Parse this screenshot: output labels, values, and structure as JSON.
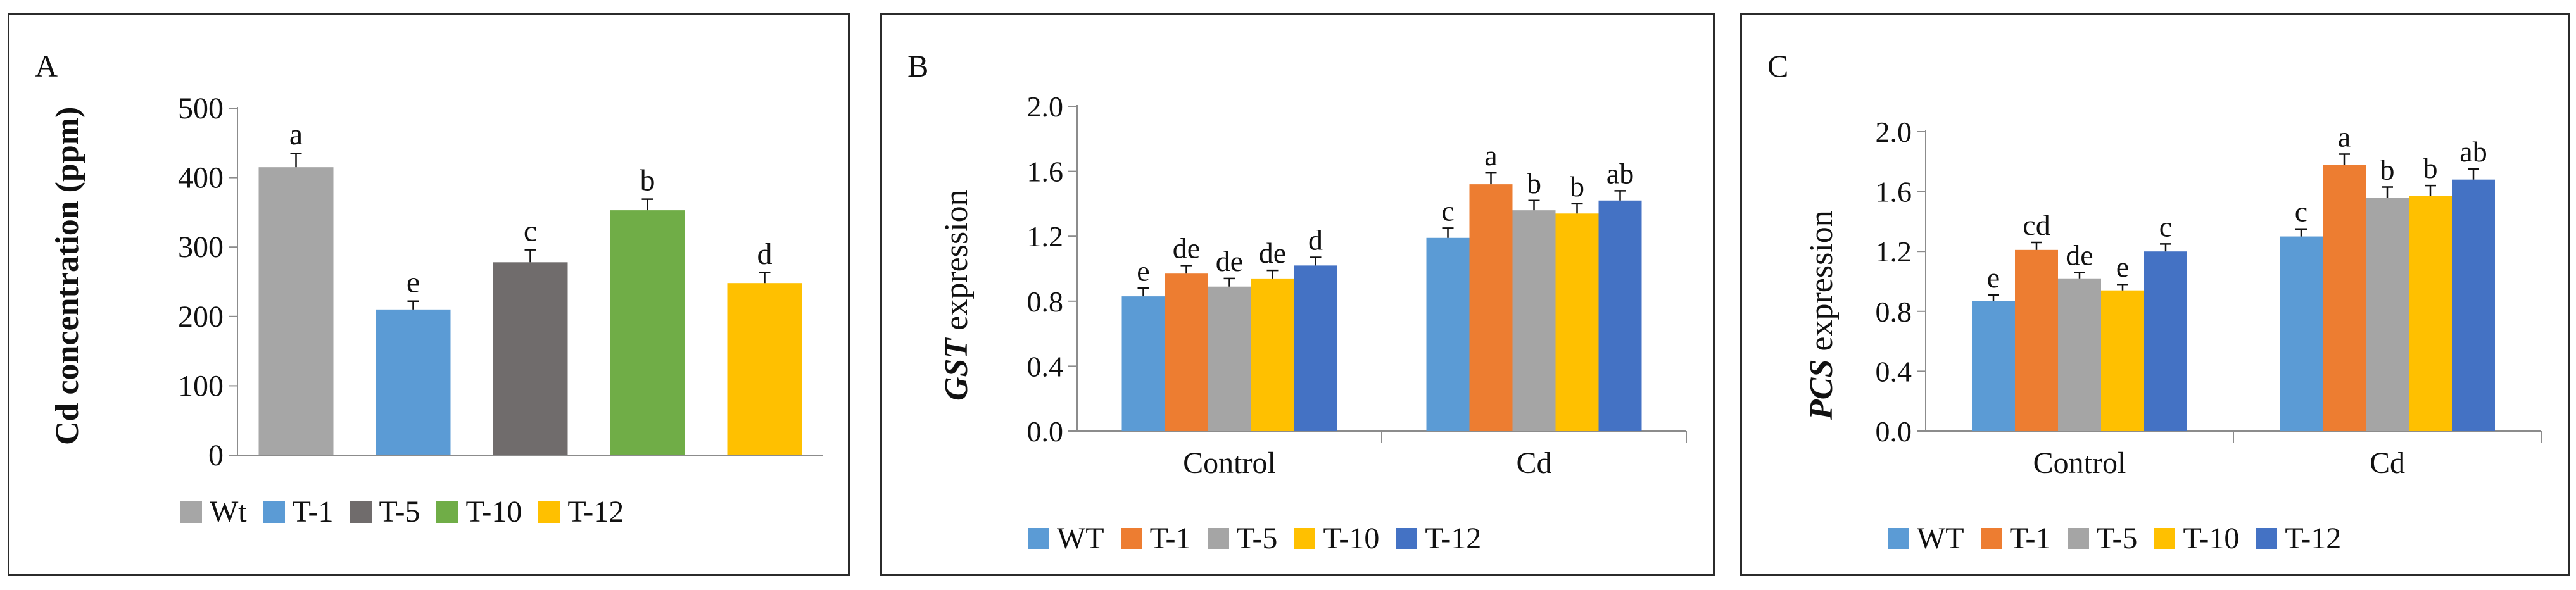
{
  "chart_data": [
    {
      "panel": "A",
      "type": "bar",
      "ylabel": "Cd concentration (ppm)",
      "ylim": [
        0,
        500
      ],
      "yticks": [
        "0",
        "100",
        "200",
        "300",
        "400",
        "500"
      ],
      "categories": [
        "Wt",
        "T-1",
        "T-5",
        "T-10",
        "T-12"
      ],
      "values": [
        415,
        210,
        278,
        353,
        248
      ],
      "errors": [
        20,
        12,
        18,
        16,
        15
      ],
      "letters": [
        "a",
        "e",
        "c",
        "b",
        "d"
      ],
      "colors": [
        "#a6a6a6",
        "#5b9bd5",
        "#706c6c",
        "#70ad47",
        "#ffc000"
      ],
      "legend_position": "bottom"
    },
    {
      "panel": "B",
      "type": "bar",
      "ylabel_gene": "GST",
      "ylabel_rest": " expression",
      "ylim": [
        0,
        2.0
      ],
      "yticks": [
        "0.0",
        "0.4",
        "0.8",
        "1.2",
        "1.6",
        "2.0"
      ],
      "categories": [
        "Control",
        "Cd"
      ],
      "series": [
        {
          "name": "WT",
          "color": "#5b9bd5",
          "values": [
            0.83,
            1.19
          ],
          "errors": [
            0.05,
            0.06
          ],
          "letters": [
            "e",
            "c"
          ]
        },
        {
          "name": "T-1",
          "color": "#ed7d31",
          "values": [
            0.97,
            1.52
          ],
          "errors": [
            0.05,
            0.07
          ],
          "letters": [
            "de",
            "a"
          ]
        },
        {
          "name": "T-5",
          "color": "#a5a5a5",
          "values": [
            0.89,
            1.36
          ],
          "errors": [
            0.05,
            0.06
          ],
          "letters": [
            "de",
            "b"
          ]
        },
        {
          "name": "T-10",
          "color": "#ffc000",
          "values": [
            0.94,
            1.34
          ],
          "errors": [
            0.05,
            0.06
          ],
          "letters": [
            "de",
            "b"
          ]
        },
        {
          "name": "T-12",
          "color": "#4472c4",
          "values": [
            1.02,
            1.42
          ],
          "errors": [
            0.05,
            0.06
          ],
          "letters": [
            "d",
            "ab"
          ]
        }
      ],
      "legend_position": "bottom"
    },
    {
      "panel": "C",
      "type": "bar",
      "ylabel_gene": "PCS",
      "ylabel_rest": " expression",
      "ylim": [
        0,
        2.0
      ],
      "yticks": [
        "0.0",
        "0.4",
        "0.8",
        "1.2",
        "1.6",
        "2.0"
      ],
      "categories": [
        "Control",
        "Cd"
      ],
      "series": [
        {
          "name": "WT",
          "color": "#5b9bd5",
          "values": [
            0.87,
            1.3
          ],
          "errors": [
            0.04,
            0.05
          ],
          "letters": [
            "e",
            "c"
          ]
        },
        {
          "name": "T-1",
          "color": "#ed7d31",
          "values": [
            1.21,
            1.78
          ],
          "errors": [
            0.05,
            0.07
          ],
          "letters": [
            "cd",
            "a"
          ]
        },
        {
          "name": "T-5",
          "color": "#a5a5a5",
          "values": [
            1.02,
            1.56
          ],
          "errors": [
            0.04,
            0.07
          ],
          "letters": [
            "de",
            "b"
          ]
        },
        {
          "name": "T-10",
          "color": "#ffc000",
          "values": [
            0.94,
            1.57
          ],
          "errors": [
            0.04,
            0.07
          ],
          "letters": [
            "e",
            "b"
          ]
        },
        {
          "name": "T-12",
          "color": "#4472c4",
          "values": [
            1.2,
            1.68
          ],
          "errors": [
            0.05,
            0.07
          ],
          "letters": [
            "c",
            "ab"
          ]
        }
      ],
      "legend_position": "bottom"
    }
  ]
}
